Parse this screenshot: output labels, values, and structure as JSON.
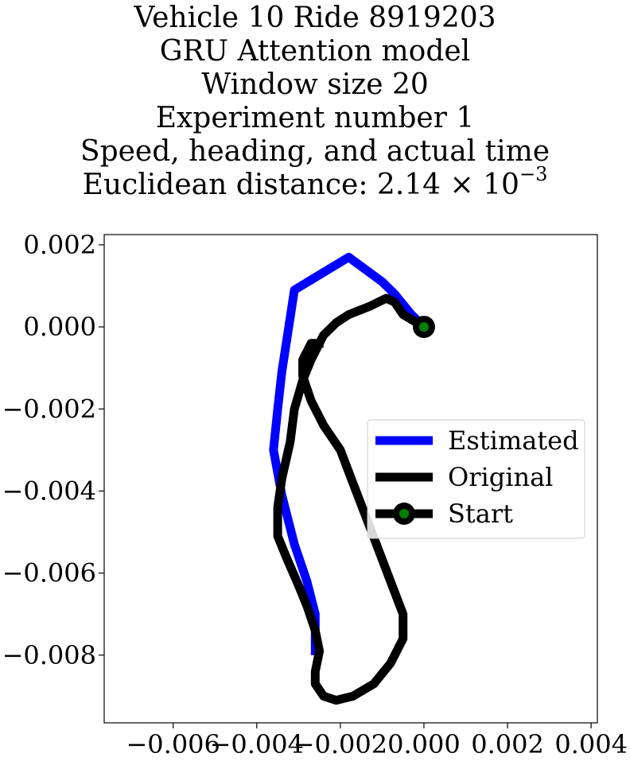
{
  "chart_data": {
    "type": "line",
    "title_lines": [
      "Vehicle 10 Ride 8919203",
      "GRU Attention model",
      "Window size 20",
      "Experiment number 1",
      "Speed, heading, and actual time"
    ],
    "distance_label": "Euclidean distance: 2.14 × 10",
    "distance_exponent": "−3",
    "xlabel": "",
    "ylabel": "",
    "xlim": [
      -0.00765,
      0.00415
    ],
    "ylim": [
      -0.00965,
      0.00225
    ],
    "x_ticks": [
      -0.006,
      -0.004,
      -0.002,
      0.0,
      0.002,
      0.004
    ],
    "x_tick_labels": [
      "−0.006",
      "−0.004",
      "−0.002",
      "0.000",
      "0.002",
      "0.004"
    ],
    "y_ticks": [
      0.002,
      0.0,
      -0.002,
      -0.004,
      -0.006,
      -0.008
    ],
    "y_tick_labels": [
      "0.002",
      "0.000",
      "−0.002",
      "−0.004",
      "−0.006",
      "−0.008"
    ],
    "grid": false,
    "legend_placement": "center-right",
    "series": [
      {
        "name": "Estimated",
        "color": "#0000ff",
        "x": [
          0.0,
          -0.0003,
          -0.0007,
          -0.001,
          -0.0018,
          -0.0031,
          -0.0034,
          -0.0035,
          -0.0036,
          -0.0034,
          -0.0031,
          -0.0028,
          -0.0026,
          -0.0026
        ],
        "y": [
          0.0,
          0.0003,
          0.0008,
          0.0011,
          0.0017,
          0.0009,
          -0.0011,
          -0.002,
          -0.003,
          -0.0041,
          -0.0053,
          -0.0062,
          -0.007,
          -0.008
        ]
      },
      {
        "name": "Original",
        "color": "#000000",
        "x": [
          0.0,
          -0.0005,
          -0.0007,
          -0.0009,
          -0.0013,
          -0.0018,
          -0.0021,
          -0.0024,
          -0.0027,
          -0.0029,
          -0.0031,
          -0.0032,
          -0.0034,
          -0.0035,
          -0.0035,
          -0.0033,
          -0.003,
          -0.0028,
          -0.0026,
          -0.0025,
          -0.0026,
          -0.0026,
          -0.0024,
          -0.0021,
          -0.0017,
          -0.0012,
          -0.0008,
          -0.0005,
          -0.0005,
          -0.0008,
          -0.0011,
          -0.0014,
          -0.0017,
          -0.002,
          -0.0024,
          -0.0027,
          -0.0029,
          -0.0029,
          -0.0027,
          -0.0024
        ],
        "y": [
          0.0,
          0.0003,
          0.0006,
          0.0007,
          0.0005,
          0.0003,
          0.0001,
          -0.0002,
          -0.0008,
          -0.0013,
          -0.002,
          -0.0028,
          -0.0037,
          -0.0044,
          -0.0051,
          -0.0056,
          -0.0063,
          -0.0068,
          -0.0074,
          -0.0079,
          -0.0084,
          -0.0087,
          -0.009,
          -0.0091,
          -0.009,
          -0.0087,
          -0.0082,
          -0.0076,
          -0.007,
          -0.0062,
          -0.0054,
          -0.0046,
          -0.0038,
          -0.003,
          -0.0024,
          -0.0018,
          -0.0012,
          -0.0008,
          -0.0004,
          -0.0004
        ]
      },
      {
        "name": "Start",
        "color": "#000000",
        "marker_face": "#008000",
        "x": [
          0.0
        ],
        "y": [
          0.0
        ]
      }
    ]
  }
}
